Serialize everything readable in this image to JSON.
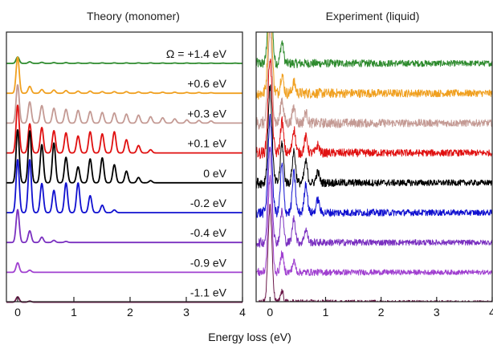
{
  "chart_data": [
    {
      "type": "line",
      "panel": "left",
      "title": "Theory (monomer)",
      "xlabel": "Energy loss (eV)",
      "xlim": [
        -0.2,
        4.0
      ],
      "x_ticks": [
        "0",
        "1",
        "2",
        "3",
        "4"
      ],
      "y_ticks_shown": false,
      "stacking": "vertically offset traces, top to bottom in series order",
      "grid": false,
      "peak_shape": "vibrational progression, spacing ~0.215 eV",
      "series": [
        {
          "name": "Ω = +1.4 eV",
          "color": "#2e8b2e",
          "peaks_x": [
            0.0,
            0.215,
            0.43,
            0.645,
            0.86,
            1.075,
            1.29,
            1.505,
            1.72,
            1.935,
            2.15,
            2.365,
            2.58,
            2.795,
            3.01,
            3.225,
            3.44,
            3.655,
            3.87
          ],
          "peaks_y": [
            0.12,
            0.03,
            0.02,
            0.015,
            0.015,
            0.01,
            0.01,
            0.01,
            0.01,
            0.01,
            0.01,
            0.01,
            0.008,
            0.008,
            0.008,
            0.006,
            0.006,
            0.005,
            0.005
          ]
        },
        {
          "name": "+0.6 eV",
          "color": "#f0a020",
          "peaks_x": [
            0.0,
            0.215,
            0.43,
            0.645,
            0.86,
            1.075,
            1.29,
            1.505,
            1.72,
            1.935,
            2.15,
            2.365,
            2.58,
            2.795,
            3.01,
            3.225,
            3.44
          ],
          "peaks_y": [
            0.68,
            0.13,
            0.07,
            0.06,
            0.05,
            0.04,
            0.04,
            0.03,
            0.03,
            0.03,
            0.025,
            0.02,
            0.02,
            0.02,
            0.015,
            0.015,
            0.01
          ]
        },
        {
          "name": "+0.3 eV",
          "color": "#c49a94",
          "peaks_x": [
            0.0,
            0.215,
            0.43,
            0.645,
            0.86,
            1.075,
            1.29,
            1.505,
            1.72,
            1.935,
            2.15,
            2.365,
            2.58,
            2.795,
            3.01,
            3.225,
            3.44
          ],
          "peaks_y": [
            0.72,
            0.4,
            0.33,
            0.28,
            0.26,
            0.24,
            0.22,
            0.2,
            0.19,
            0.17,
            0.15,
            0.12,
            0.1,
            0.08,
            0.06,
            0.05,
            0.04
          ]
        },
        {
          "name": "+0.1 eV",
          "color": "#e01010",
          "peaks_x": [
            0.0,
            0.215,
            0.43,
            0.645,
            0.86,
            1.075,
            1.29,
            1.505,
            1.72,
            1.935,
            2.15,
            2.365
          ],
          "peaks_y": [
            0.9,
            0.55,
            0.48,
            0.42,
            0.38,
            0.32,
            0.4,
            0.36,
            0.4,
            0.25,
            0.14,
            0.06
          ]
        },
        {
          "name": "0 eV",
          "color": "#000000",
          "peaks_x": [
            0.0,
            0.215,
            0.43,
            0.645,
            0.86,
            1.075,
            1.29,
            1.505,
            1.72,
            1.935,
            2.15,
            2.365
          ],
          "peaks_y": [
            1.0,
            0.98,
            0.72,
            0.75,
            0.48,
            0.3,
            0.45,
            0.47,
            0.34,
            0.22,
            0.1,
            0.04
          ]
        },
        {
          "name": "-0.2 eV",
          "color": "#1010d0",
          "peaks_x": [
            0.0,
            0.215,
            0.43,
            0.645,
            0.86,
            1.075,
            1.29,
            1.505,
            1.72
          ],
          "peaks_y": [
            1.0,
            1.0,
            0.55,
            0.42,
            0.56,
            0.56,
            0.32,
            0.14,
            0.05
          ]
        },
        {
          "name": "-0.4 eV",
          "color": "#7a30c0",
          "peaks_x": [
            0.0,
            0.215,
            0.43,
            0.645,
            0.86
          ],
          "peaks_y": [
            0.62,
            0.22,
            0.1,
            0.04,
            0.02
          ]
        },
        {
          "name": "-0.9 eV",
          "color": "#a040d0",
          "peaks_x": [
            0.0,
            0.215
          ],
          "peaks_y": [
            0.18,
            0.04
          ]
        },
        {
          "name": "-1.1 eV",
          "color": "#6a1848",
          "peaks_x": [
            0.0,
            0.215
          ],
          "peaks_y": [
            0.1,
            0.02
          ]
        }
      ]
    },
    {
      "type": "line",
      "panel": "right",
      "title": "Experiment (liquid)",
      "xlabel": "Energy loss (eV)",
      "xlim": [
        -0.25,
        4.0
      ],
      "x_ticks": [
        "0",
        "1",
        "2",
        "3",
        "4"
      ],
      "y_ticks_shown": false,
      "stacking": "vertically offset noisy traces, top to bottom; elastic line at 0 eV runs off-scale",
      "grid": false,
      "series": [
        {
          "color": "#2e8b2e",
          "peaks_x": [
            0.0,
            0.215
          ],
          "peaks_y": [
            1.8,
            0.4
          ],
          "noise": 0.1
        },
        {
          "color": "#f0a020",
          "peaks_x": [
            0.0,
            0.215,
            0.43
          ],
          "peaks_y": [
            1.8,
            0.35,
            0.2
          ],
          "noise": 0.12
        },
        {
          "color": "#c49a94",
          "peaks_x": [
            0.0,
            0.215,
            0.43,
            0.645
          ],
          "peaks_y": [
            1.8,
            0.45,
            0.3,
            0.2
          ],
          "noise": 0.12
        },
        {
          "color": "#e01010",
          "peaks_x": [
            0.0,
            0.215,
            0.43,
            0.645,
            0.86
          ],
          "peaks_y": [
            1.8,
            0.6,
            0.45,
            0.3,
            0.15
          ],
          "noise": 0.11
        },
        {
          "color": "#000000",
          "peaks_x": [
            0.0,
            0.215,
            0.43,
            0.645,
            0.86
          ],
          "peaks_y": [
            1.8,
            0.75,
            0.6,
            0.4,
            0.2
          ],
          "noise": 0.1
        },
        {
          "color": "#1010d0",
          "peaks_x": [
            0.0,
            0.215,
            0.43,
            0.645,
            0.86
          ],
          "peaks_y": [
            1.8,
            0.9,
            0.75,
            0.55,
            0.25
          ],
          "noise": 0.1
        },
        {
          "color": "#7a30c0",
          "peaks_x": [
            0.0,
            0.215,
            0.43,
            0.645
          ],
          "peaks_y": [
            1.8,
            0.6,
            0.45,
            0.25
          ],
          "noise": 0.09
        },
        {
          "color": "#a040d0",
          "peaks_x": [
            0.0,
            0.215,
            0.43
          ],
          "peaks_y": [
            1.8,
            0.35,
            0.2
          ],
          "noise": 0.08
        },
        {
          "color": "#6a1848",
          "peaks_x": [
            0.0,
            0.215
          ],
          "peaks_y": [
            1.8,
            0.2
          ],
          "noise": 0.06
        }
      ]
    }
  ]
}
